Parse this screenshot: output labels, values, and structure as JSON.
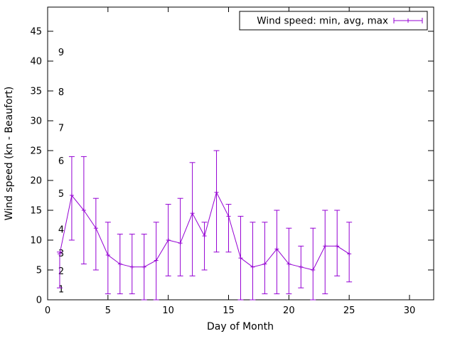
{
  "chart": {
    "accent_color": "#9400d3",
    "axis_color": "#000000",
    "background_color": "#ffffff"
  },
  "chart_data": {
    "type": "line",
    "style": "yerrorlines",
    "title": "",
    "xlabel": "Day of Month",
    "ylabel": "Wind speed (kn - Beaufort)",
    "xlim": [
      0,
      32
    ],
    "ylim": [
      0,
      49
    ],
    "xticks": [
      0,
      5,
      10,
      15,
      20,
      25,
      30
    ],
    "yticks": [
      0,
      5,
      10,
      15,
      20,
      25,
      30,
      35,
      40,
      45
    ],
    "grid": false,
    "legend": {
      "label": "Wind speed: min, avg, max",
      "position": "top-right",
      "box": true
    },
    "beaufort_scale": [
      {
        "label": "1",
        "kn": 1.8
      },
      {
        "label": "2",
        "kn": 4.8
      },
      {
        "label": "3",
        "kn": 7.8
      },
      {
        "label": "4",
        "kn": 11.8
      },
      {
        "label": "5",
        "kn": 17.8
      },
      {
        "label": "6",
        "kn": 23.3
      },
      {
        "label": "7",
        "kn": 28.8
      },
      {
        "label": "8",
        "kn": 34.8
      },
      {
        "label": "9",
        "kn": 41.5
      }
    ],
    "x": [
      1,
      2,
      3,
      4,
      5,
      6,
      7,
      8,
      9,
      10,
      11,
      12,
      13,
      14,
      15,
      16,
      17,
      18,
      19,
      20,
      21,
      22,
      23,
      24,
      25
    ],
    "series": [
      {
        "name": "avg",
        "values": [
          7.7,
          17.5,
          15,
          12,
          7.5,
          6,
          5.5,
          5.5,
          6.6,
          10,
          9.5,
          14.5,
          10.7,
          18,
          14,
          7,
          5.5,
          6,
          8.5,
          6,
          5.5,
          5,
          9,
          9,
          7.7
        ]
      },
      {
        "name": "min",
        "values": [
          2,
          10,
          6,
          5,
          1,
          1,
          1,
          0,
          0,
          4,
          4,
          4,
          5,
          8,
          8,
          0,
          0,
          1,
          1,
          1,
          2,
          0,
          1,
          4,
          3
        ]
      },
      {
        "name": "max",
        "values": [
          8,
          24,
          24,
          17,
          13,
          11,
          11,
          11,
          13,
          16,
          17,
          23,
          13,
          25,
          16,
          14,
          13,
          13,
          15,
          12,
          9,
          12,
          15,
          15,
          13
        ]
      }
    ]
  }
}
